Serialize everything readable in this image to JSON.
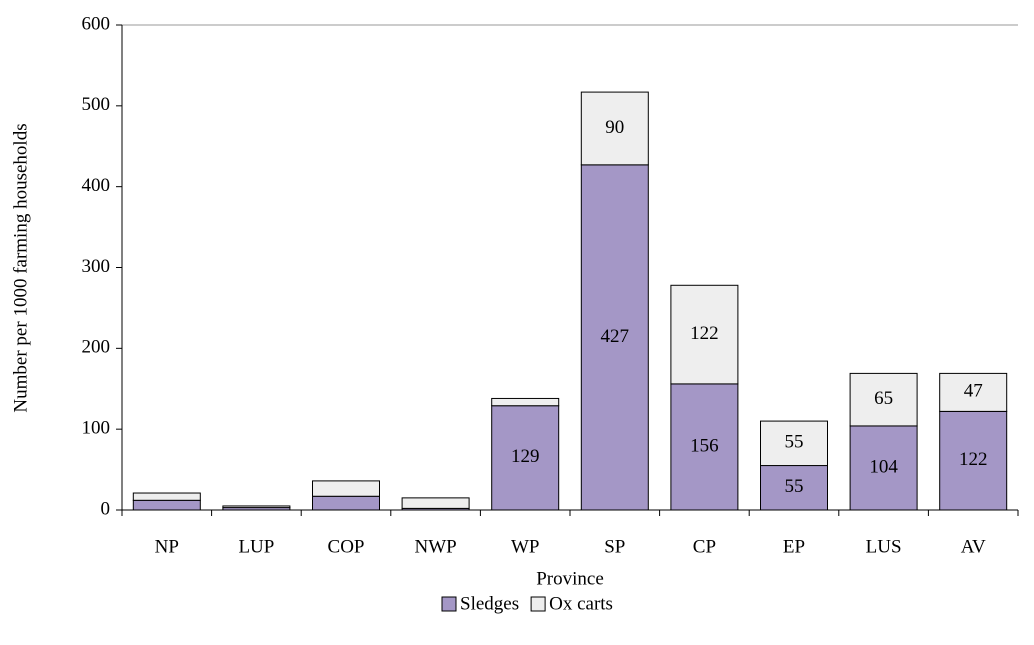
{
  "chart_data": {
    "type": "stacked-bar",
    "x_label": "Province",
    "y_label": "Number per 1000 farming households",
    "categories": [
      "NP",
      "LUP",
      "COP",
      "NWP",
      "WP",
      "SP",
      "CP",
      "EP",
      "LUS",
      "AV"
    ],
    "series": [
      {
        "name": "Sledges",
        "color": "#a497c6",
        "values": [
          12,
          3,
          17,
          2,
          129,
          427,
          156,
          55,
          104,
          122
        ],
        "value_labels": [
          null,
          null,
          null,
          null,
          "129",
          "427",
          "156",
          "55",
          "104",
          "122"
        ]
      },
      {
        "name": "Ox carts",
        "color": "#eeeeee",
        "values": [
          9,
          2,
          19,
          13,
          9,
          90,
          122,
          55,
          65,
          47
        ],
        "value_labels": [
          null,
          null,
          null,
          null,
          null,
          "90",
          "122",
          "55",
          "65",
          "47"
        ]
      }
    ],
    "ylim": [
      0,
      600
    ],
    "yticks": [
      0,
      100,
      200,
      300,
      400,
      500,
      600
    ],
    "legend": "bottom"
  }
}
